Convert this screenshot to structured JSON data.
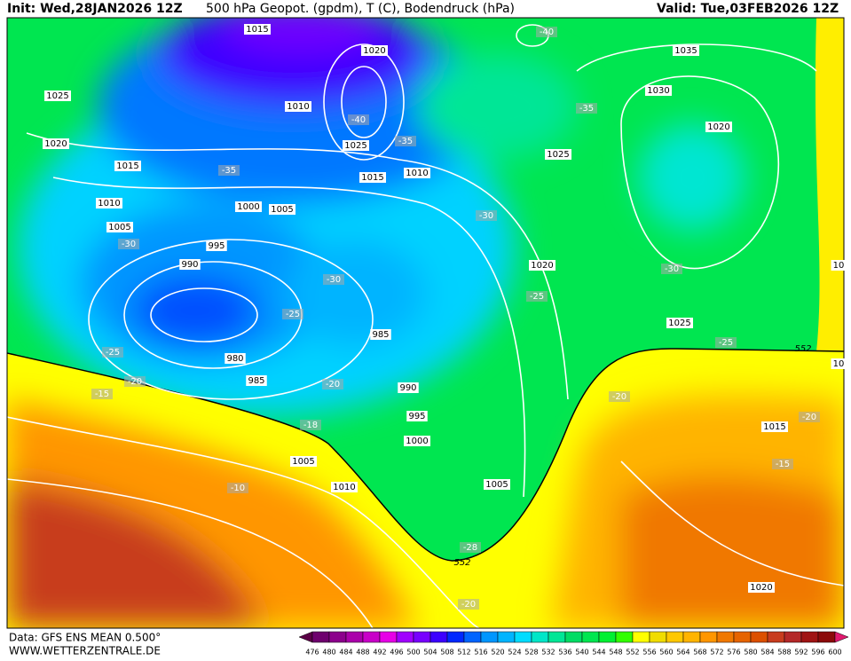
{
  "header": {
    "init": "Init: Wed,28JAN2026 12Z",
    "title": "500 hPa Geopot. (gpdm), T (C), Bodendruck (hPa)",
    "valid": "Valid: Tue,03FEB2026 12Z"
  },
  "map": {
    "pressure_labels": [
      1015,
      1020,
      1035,
      1025,
      1010,
      1030,
      1020,
      1025,
      1025,
      1020,
      1015,
      1015,
      1010,
      1010,
      1000,
      1005,
      1005,
      995,
      990,
      1020,
      985,
      1025,
      980,
      985,
      990,
      995,
      1000,
      1005,
      1010,
      1005,
      1015,
      1020,
      10,
      10
    ],
    "temperature_labels": [
      -40,
      -40,
      -35,
      -35,
      -35,
      -30,
      -30,
      -30,
      -25,
      -30,
      -25,
      -25,
      -25,
      -20,
      -20,
      -20,
      -18,
      -20,
      -15,
      -15,
      -10,
      -28,
      -20
    ],
    "contour_552_labels": [
      552,
      552
    ]
  },
  "colorbar": {
    "values": [
      476,
      480,
      484,
      488,
      492,
      496,
      500,
      504,
      508,
      512,
      516,
      520,
      524,
      528,
      532,
      536,
      540,
      544,
      548,
      552,
      556,
      560,
      564,
      568,
      572,
      576,
      580,
      584,
      588,
      592,
      596,
      600
    ],
    "colors": [
      "#5a0046",
      "#6e006e",
      "#8c008c",
      "#aa00aa",
      "#c800c8",
      "#e600e6",
      "#a000ff",
      "#7800ff",
      "#3c00ff",
      "#0028ff",
      "#0064ff",
      "#0096ff",
      "#00b4ff",
      "#00dcff",
      "#00e6c8",
      "#00e696",
      "#00dc64",
      "#00e650",
      "#00f032",
      "#32ff00",
      "#ffff00",
      "#f0dc00",
      "#ffc800",
      "#ffb400",
      "#ff9600",
      "#f07800",
      "#e66400",
      "#dc5000",
      "#c83c1e",
      "#b42828",
      "#a01414",
      "#8c0a0a",
      "#e0186e"
    ]
  },
  "footer": {
    "source": "Data: GFS ENS MEAN 0.500°",
    "website": "WWW.WETTERZENTRALE.DE"
  }
}
